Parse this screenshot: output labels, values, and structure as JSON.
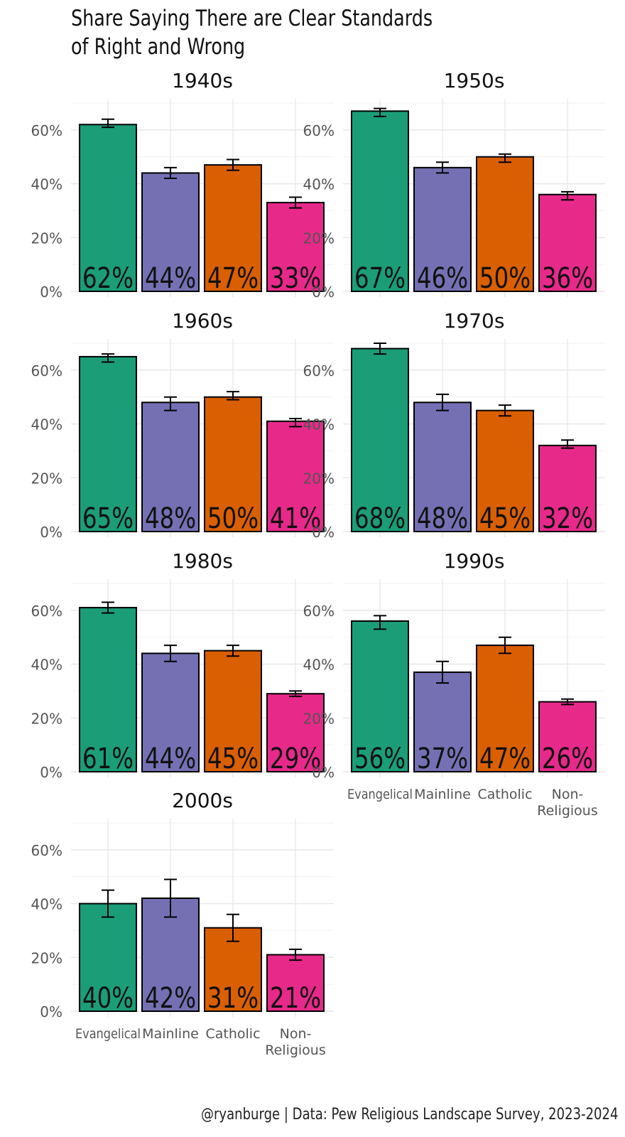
{
  "chart_data": {
    "type": "bar",
    "title": "Share Saying There are Clear Standards\nof Right and Wrong",
    "categories": [
      "Evangelical",
      "Mainline",
      "Catholic",
      "Non-\nReligious"
    ],
    "colors": [
      "#1b9e77",
      "#7570b3",
      "#d95f02",
      "#e7298a"
    ],
    "ylim": [
      0,
      70
    ],
    "yticks": [
      0,
      20,
      40,
      60
    ],
    "ytick_labels": [
      "0%",
      "20%",
      "40%",
      "60%"
    ],
    "panels": [
      {
        "label": "1940s",
        "values": [
          62,
          44,
          47,
          33
        ],
        "labels": [
          "62%",
          "44%",
          "47%",
          "33%"
        ],
        "err_low": [
          61,
          42,
          45,
          31
        ],
        "err_high": [
          64,
          46,
          49,
          35
        ]
      },
      {
        "label": "1950s",
        "values": [
          67,
          46,
          50,
          36
        ],
        "labels": [
          "67%",
          "46%",
          "50%",
          "36%"
        ],
        "err_low": [
          65,
          44,
          48,
          34
        ],
        "err_high": [
          68,
          48,
          51,
          37
        ]
      },
      {
        "label": "1960s",
        "values": [
          65,
          48,
          50,
          41
        ],
        "labels": [
          "65%",
          "48%",
          "50%",
          "41%"
        ],
        "err_low": [
          63,
          45,
          49,
          39
        ],
        "err_high": [
          66,
          50,
          52,
          42
        ]
      },
      {
        "label": "1970s",
        "values": [
          68,
          48,
          45,
          32
        ],
        "labels": [
          "68%",
          "48%",
          "45%",
          "32%"
        ],
        "err_low": [
          66,
          45,
          43,
          31
        ],
        "err_high": [
          70,
          51,
          47,
          34
        ]
      },
      {
        "label": "1980s",
        "values": [
          61,
          44,
          45,
          29
        ],
        "labels": [
          "61%",
          "44%",
          "45%",
          "29%"
        ],
        "err_low": [
          59,
          41,
          43,
          28
        ],
        "err_high": [
          63,
          47,
          47,
          30
        ]
      },
      {
        "label": "1990s",
        "values": [
          56,
          37,
          47,
          26
        ],
        "labels": [
          "56%",
          "37%",
          "47%",
          "26%"
        ],
        "err_low": [
          53,
          33,
          44,
          25
        ],
        "err_high": [
          58,
          41,
          50,
          27
        ]
      },
      {
        "label": "2000s",
        "values": [
          40,
          42,
          31,
          21
        ],
        "labels": [
          "40%",
          "42%",
          "31%",
          "21%"
        ],
        "err_low": [
          35,
          35,
          26,
          19
        ],
        "err_high": [
          45,
          49,
          36,
          23
        ]
      }
    ]
  },
  "caption": "@ryanburge | Data: Pew Religious Landscape Survey, 2023-2024"
}
